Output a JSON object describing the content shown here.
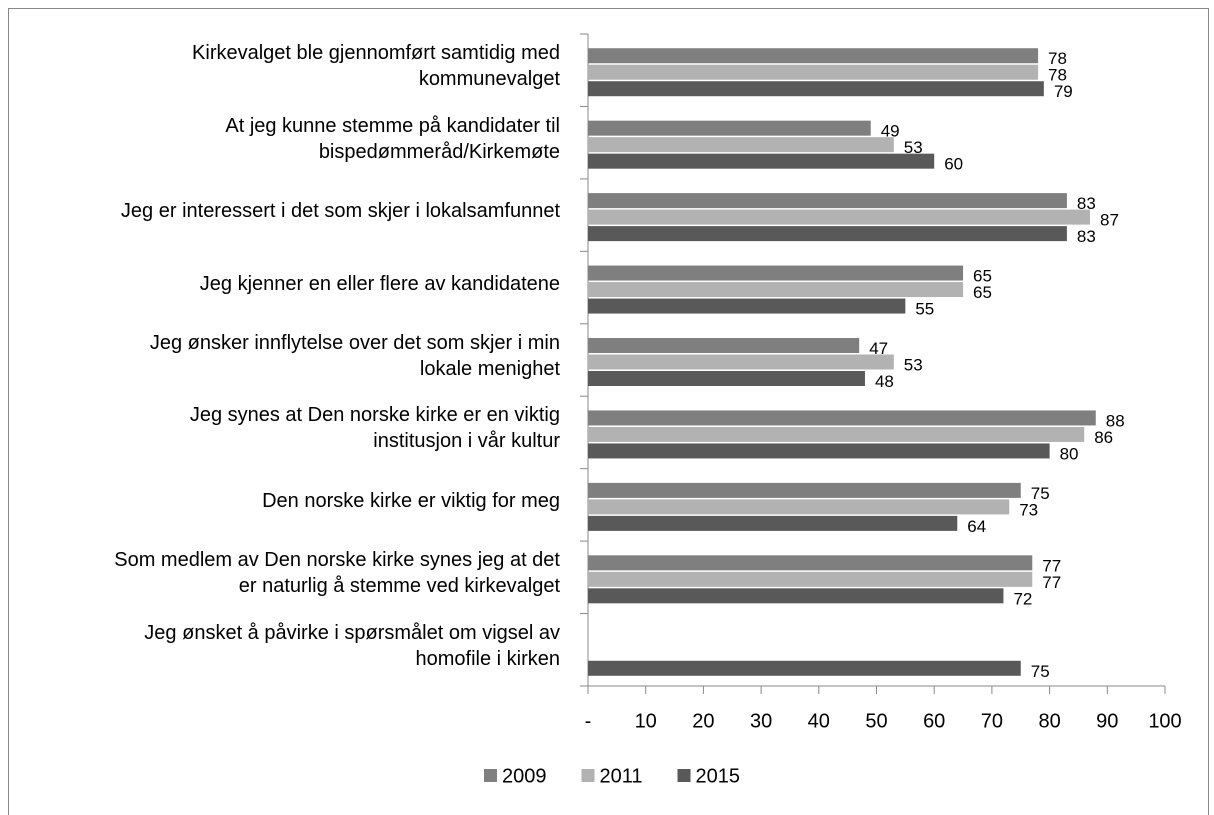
{
  "chart_data": {
    "type": "bar",
    "orientation": "horizontal",
    "categories": [
      "Kirkevalget ble gjennomført samtidig med\nkommunevalget",
      "At jeg kunne stemme på kandidater til\nbispedømmeråd/Kirkemøte",
      "Jeg er interessert i det som skjer i lokalsamfunnet",
      "Jeg kjenner en eller flere av kandidatene",
      "Jeg ønsker innflytelse over det som skjer i min\nlokale menighet",
      "Jeg synes at Den norske kirke er en viktig\ninstitusjon i vår kultur",
      "Den norske kirke er viktig for meg",
      "Som medlem av Den norske kirke synes jeg at det\ner naturlig å stemme ved kirkevalget",
      "Jeg ønsket å påvirke i spørsmålet om vigsel av\nhomofile i kirken"
    ],
    "series": [
      {
        "name": "2009",
        "color": "#7f7f7f",
        "values": [
          78,
          49,
          83,
          65,
          47,
          88,
          75,
          77,
          null
        ]
      },
      {
        "name": "2011",
        "color": "#b2b2b2",
        "values": [
          78,
          53,
          87,
          65,
          53,
          86,
          73,
          77,
          null
        ]
      },
      {
        "name": "2015",
        "color": "#595959",
        "values": [
          79,
          60,
          83,
          55,
          48,
          80,
          64,
          72,
          75
        ]
      }
    ],
    "xlim": [
      0,
      100
    ],
    "xticks": [
      {
        "value": 0,
        "label": "-"
      },
      10,
      20,
      30,
      40,
      50,
      60,
      70,
      80,
      90,
      100
    ],
    "legend": "bottom"
  }
}
